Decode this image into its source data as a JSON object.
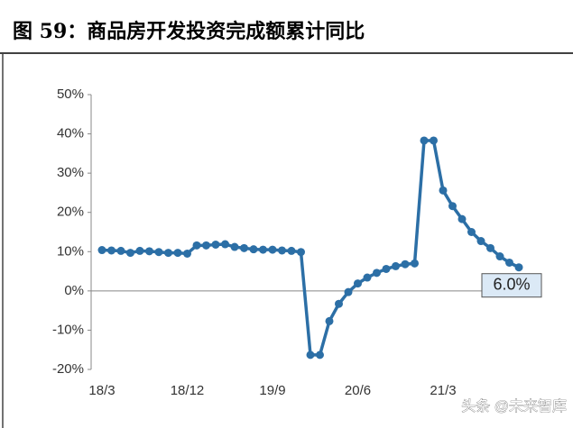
{
  "chart_data": {
    "type": "line",
    "title": "图 59：商品房开发投资完成额累计同比",
    "watermark": "头条 @未来智库",
    "categories": [
      "18/3",
      null,
      null,
      null,
      null,
      null,
      null,
      null,
      null,
      "18/12",
      null,
      null,
      null,
      null,
      null,
      null,
      null,
      null,
      "19/9",
      null,
      null,
      null,
      null,
      null,
      null,
      null,
      null,
      "20/6",
      null,
      null,
      null,
      null,
      null,
      null,
      null,
      null,
      "21/3",
      null,
      null,
      null,
      null,
      null,
      null,
      null,
      null
    ],
    "series": [
      {
        "name": "商品房开发投资完成额累计同比",
        "color": "#2c6fa6",
        "values": [
          10.4,
          10.3,
          10.2,
          9.7,
          10.2,
          10.1,
          9.9,
          9.7,
          9.7,
          9.5,
          11.6,
          11.6,
          11.8,
          11.9,
          11.2,
          10.9,
          10.6,
          10.5,
          10.5,
          10.3,
          10.2,
          9.9,
          -16.3,
          -16.3,
          -7.7,
          -3.3,
          -0.3,
          1.9,
          3.4,
          4.6,
          5.6,
          6.3,
          6.8,
          7.0,
          38.3,
          38.3,
          25.6,
          21.6,
          18.3,
          15.0,
          12.7,
          10.9,
          8.8,
          7.2,
          6.0
        ],
        "value_labels": [
          null,
          null,
          null,
          null,
          null,
          null,
          null,
          null,
          null,
          null,
          null,
          null,
          null,
          null,
          null,
          null,
          null,
          null,
          null,
          null,
          null,
          null,
          null,
          null,
          null,
          null,
          null,
          null,
          null,
          null,
          null,
          null,
          null,
          null,
          null,
          null,
          null,
          null,
          null,
          null,
          null,
          null,
          null,
          null,
          "6.0%"
        ]
      }
    ],
    "ylim": [
      -20,
      50
    ],
    "yticks": [
      {
        "value": -20,
        "label": "-20%"
      },
      {
        "value": -10,
        "label": "-10%"
      },
      {
        "value": 0,
        "label": "0%"
      },
      {
        "value": 10,
        "label": "10%"
      },
      {
        "value": 20,
        "label": "20%"
      },
      {
        "value": 30,
        "label": "30%"
      },
      {
        "value": 40,
        "label": "40%"
      },
      {
        "value": 50,
        "label": "50%"
      }
    ],
    "grid": false
  }
}
